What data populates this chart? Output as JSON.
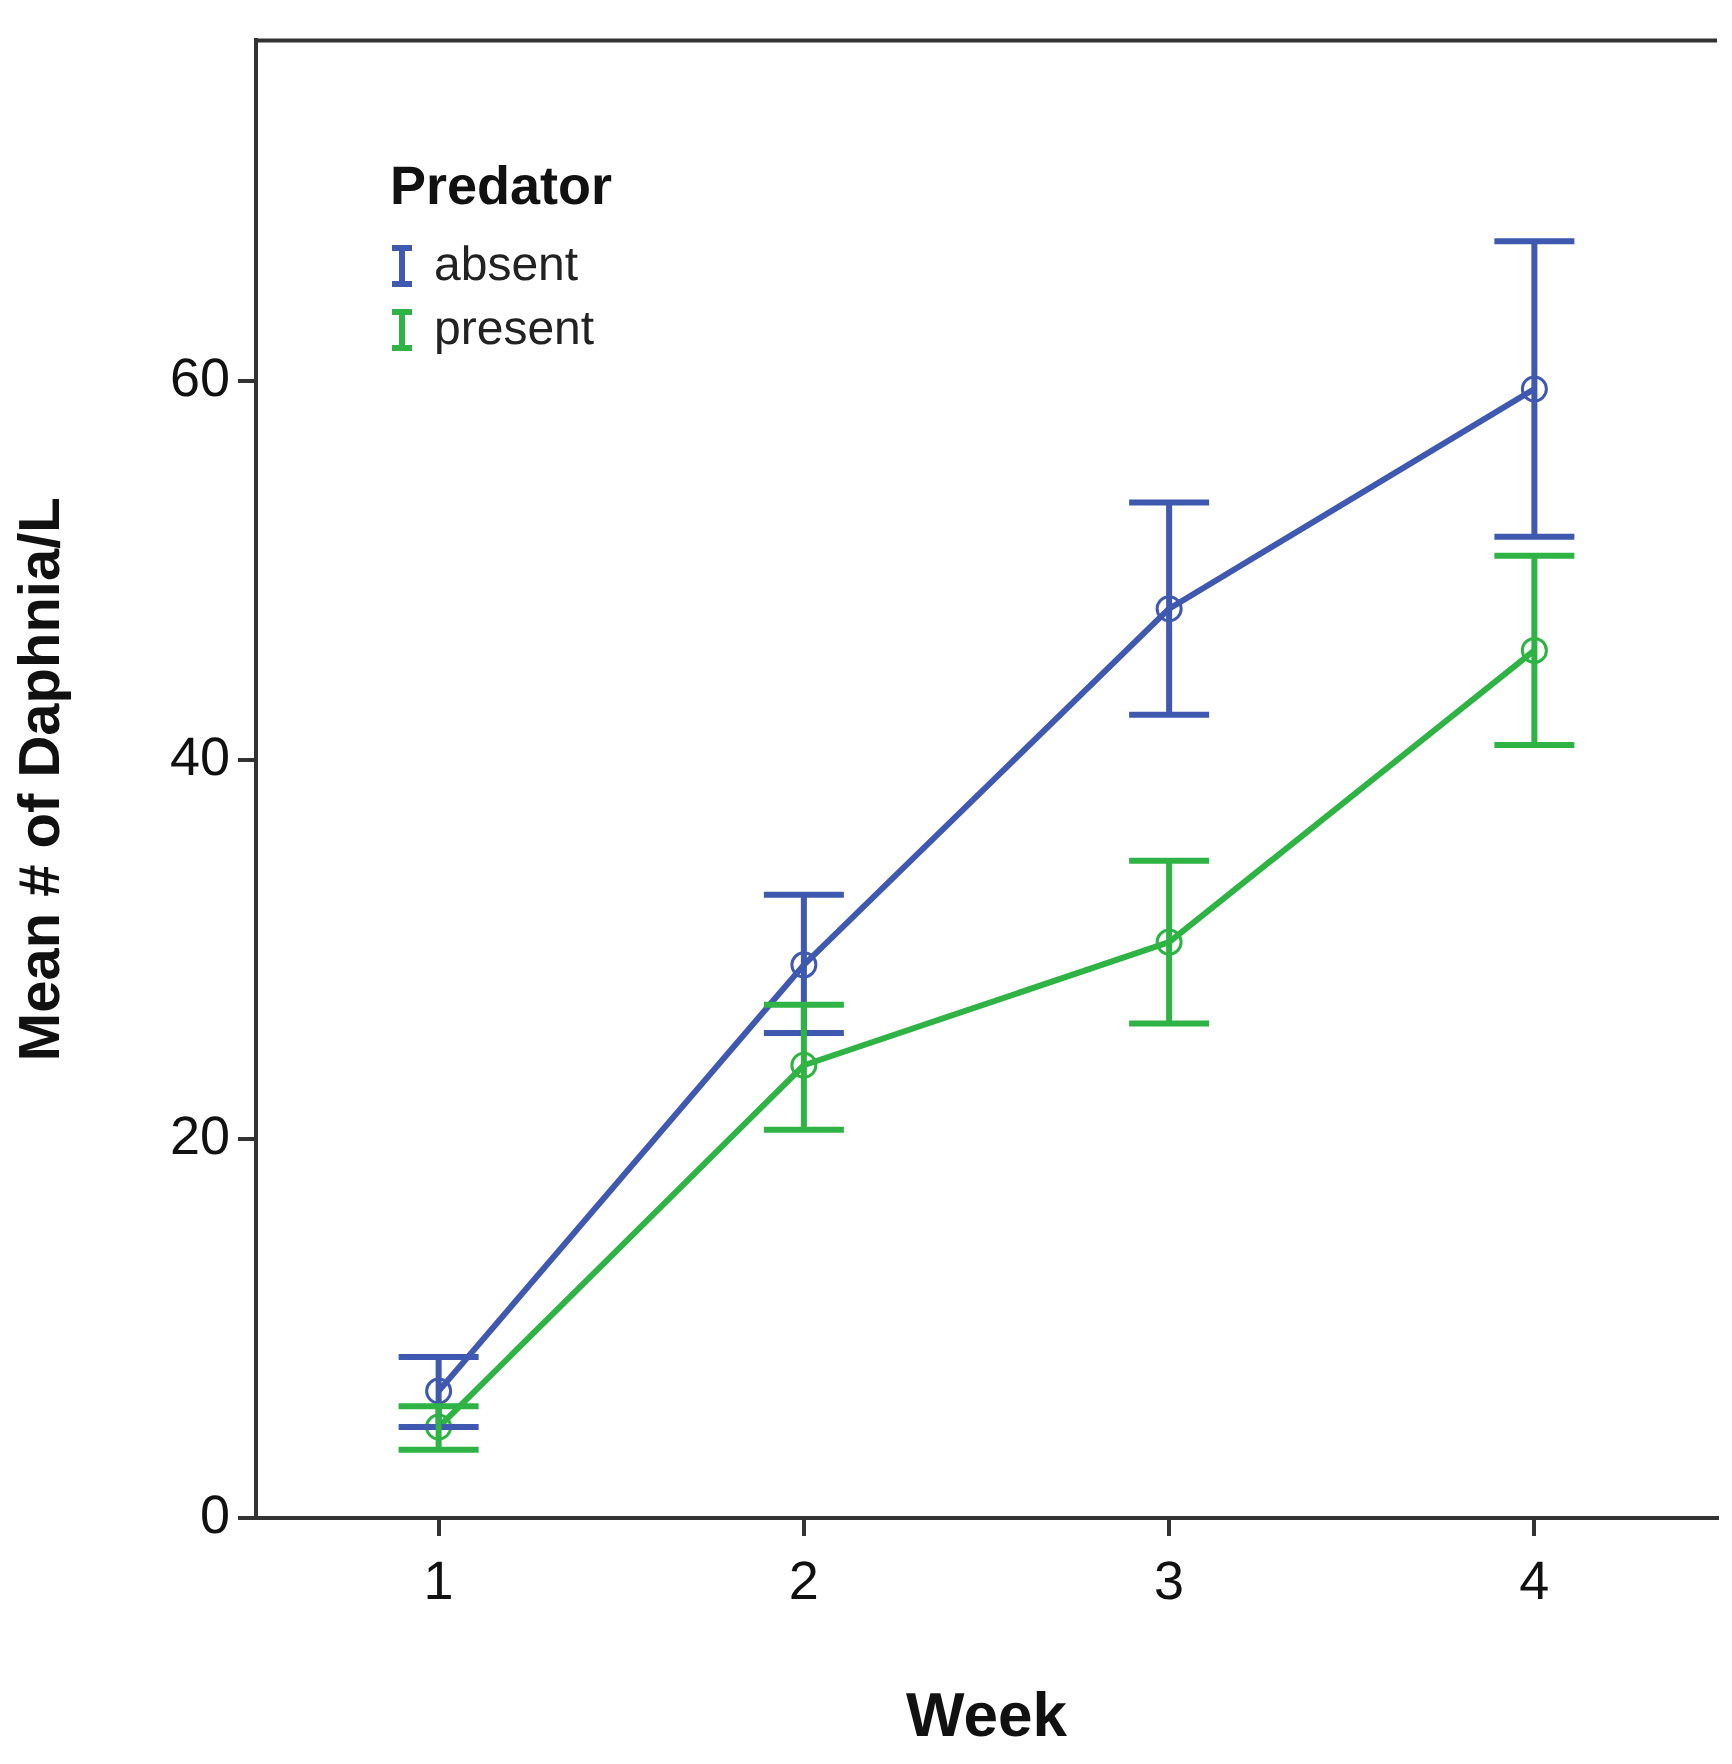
{
  "chart_data": {
    "type": "line",
    "xlabel": "Week",
    "ylabel": "Mean # of Daphnia/L",
    "legend_title": "Predator",
    "categories": [
      "1",
      "2",
      "3",
      "4"
    ],
    "series": [
      {
        "name": "absent",
        "color": "#3f58b0",
        "values": [
          6.7,
          29.2,
          48.0,
          59.6
        ],
        "errors": [
          [
            4.8,
            8.5
          ],
          [
            25.6,
            32.9
          ],
          [
            42.4,
            53.6
          ],
          [
            51.8,
            67.4
          ]
        ]
      },
      {
        "name": "present",
        "color": "#2fb344",
        "values": [
          4.8,
          23.9,
          30.4,
          45.8
        ],
        "errors": [
          [
            3.6,
            5.9
          ],
          [
            20.5,
            27.1
          ],
          [
            26.1,
            34.7
          ],
          [
            40.8,
            50.8
          ]
        ]
      }
    ],
    "ylim": [
      0,
      78
    ],
    "yticks": [
      0,
      20,
      40,
      60
    ],
    "grid": false,
    "legend": "top left",
    "marker": "circle",
    "line_style": "solid"
  }
}
